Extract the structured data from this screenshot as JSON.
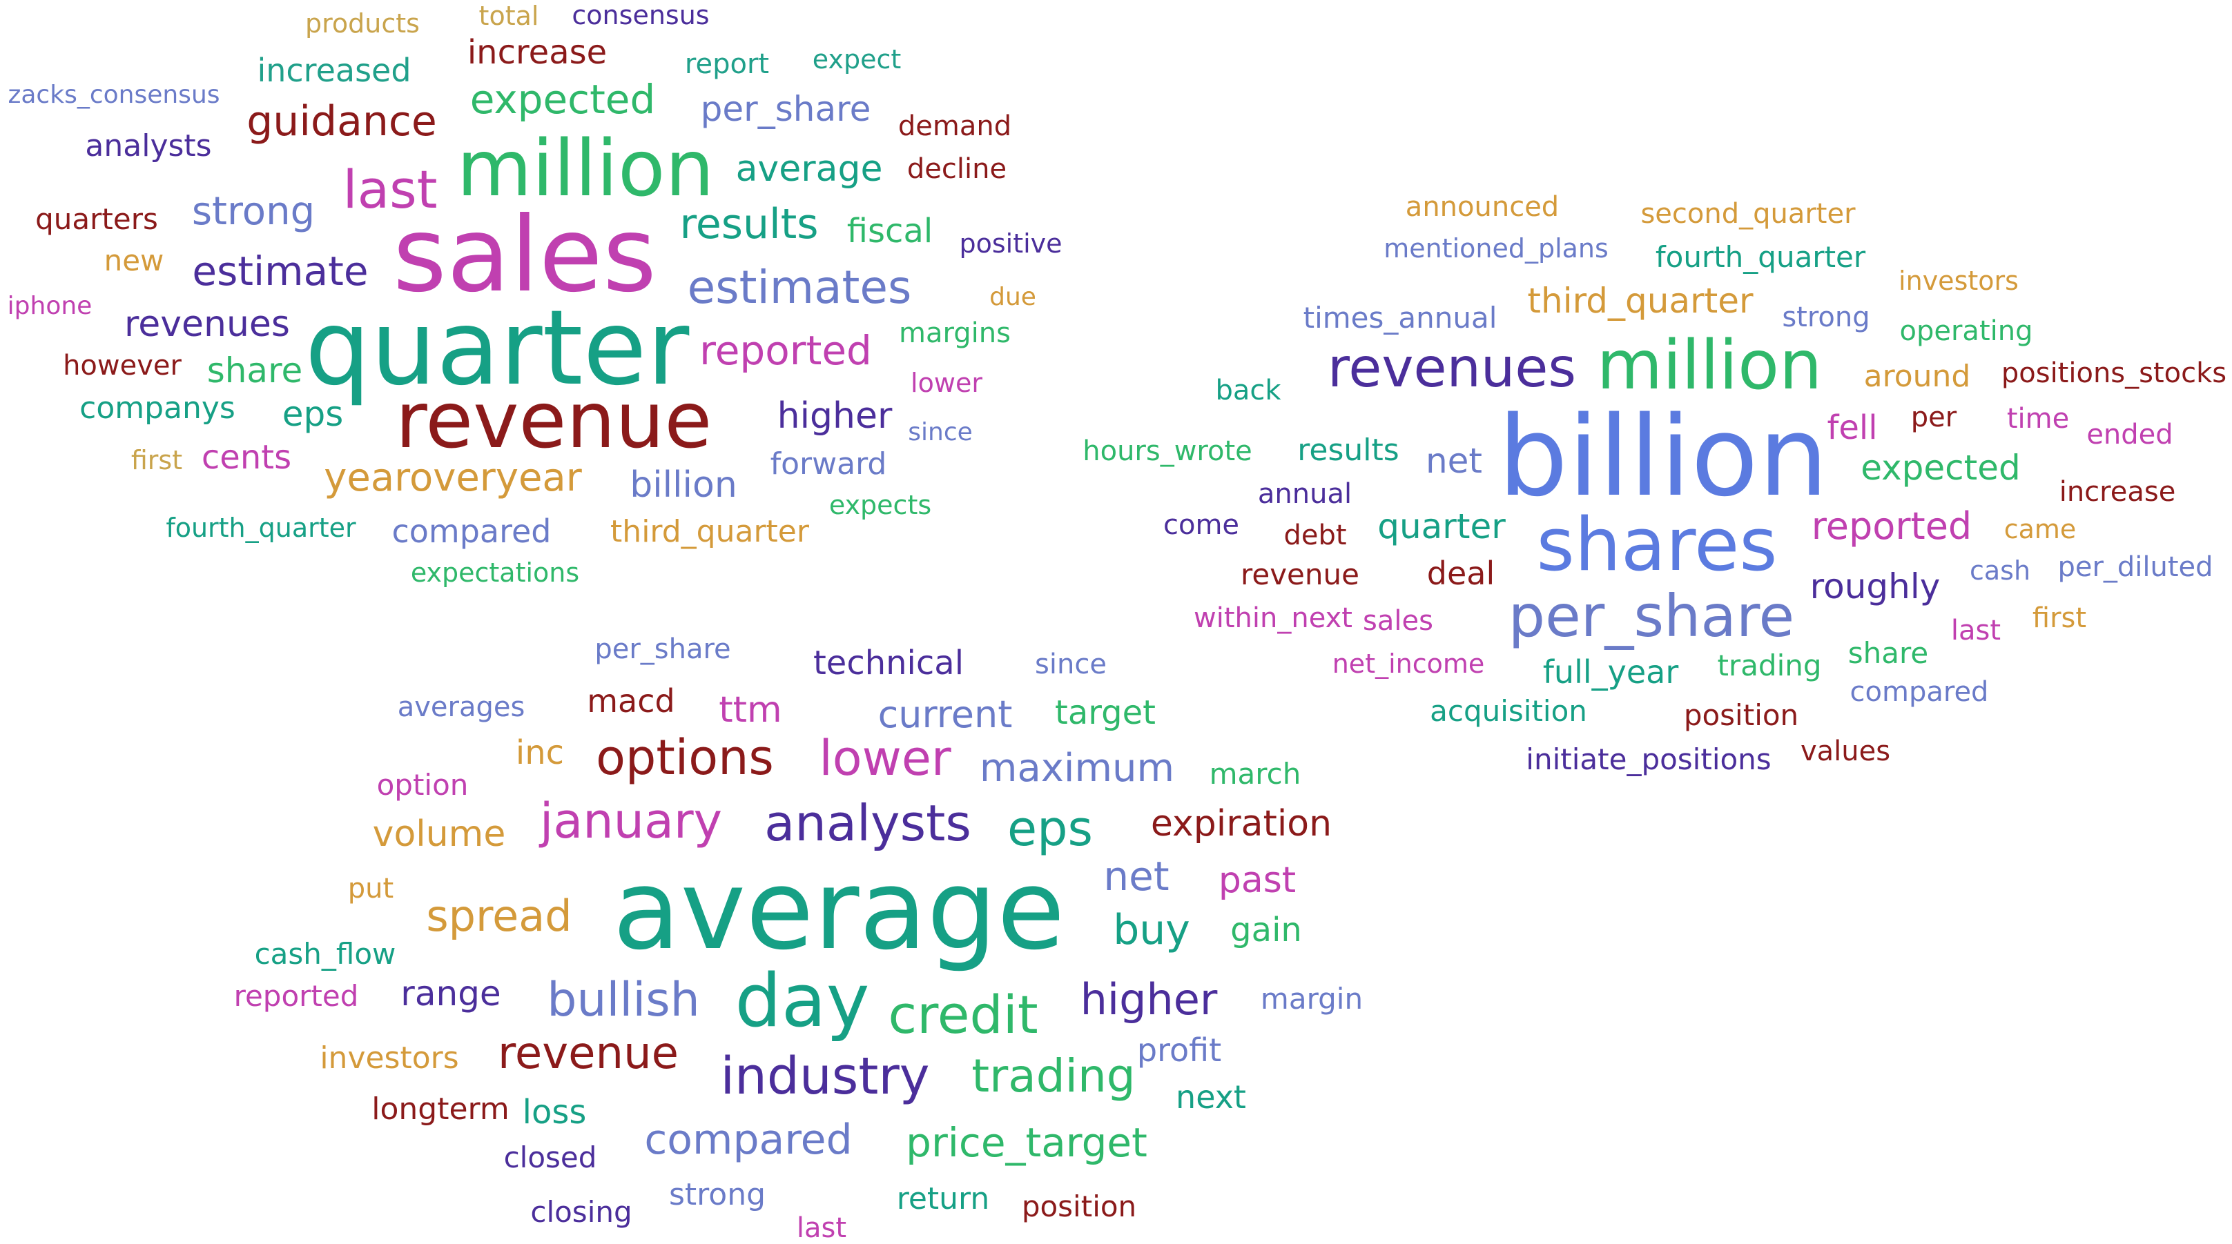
{
  "clouds": [
    {
      "name": "cloud-topic-1",
      "words": [
        {
          "text": "products",
          "color": "#C9A44C"
        },
        {
          "text": "total",
          "color": "#C9A44C"
        },
        {
          "text": "consensus",
          "color": "#4B2E9B"
        },
        {
          "text": "increased",
          "color": "#20A08A"
        },
        {
          "text": "increase",
          "color": "#8B1A1A"
        },
        {
          "text": "report",
          "color": "#20A08A"
        },
        {
          "text": "expect",
          "color": "#20A08A"
        },
        {
          "text": "zacks_consensus",
          "color": "#6A7BC8"
        },
        {
          "text": "expected",
          "color": "#2FB86A"
        },
        {
          "text": "per_share",
          "color": "#6A7BC8"
        },
        {
          "text": "guidance",
          "color": "#8B1A1A"
        },
        {
          "text": "demand",
          "color": "#8B1A1A"
        },
        {
          "text": "analysts",
          "color": "#4B2E9B"
        },
        {
          "text": "million",
          "color": "#2FB86A"
        },
        {
          "text": "average",
          "color": "#16A085"
        },
        {
          "text": "decline",
          "color": "#8B1A1A"
        },
        {
          "text": "last",
          "color": "#C040B0"
        },
        {
          "text": "quarters",
          "color": "#8B1A1A"
        },
        {
          "text": "strong",
          "color": "#6A7BC8"
        },
        {
          "text": "results",
          "color": "#16A085"
        },
        {
          "text": "fiscal",
          "color": "#2FB86A"
        },
        {
          "text": "sales",
          "color": "#C040B0"
        },
        {
          "text": "positive",
          "color": "#4B2E9B"
        },
        {
          "text": "new",
          "color": "#D49A3A"
        },
        {
          "text": "estimate",
          "color": "#4B2E9B"
        },
        {
          "text": "estimates",
          "color": "#6A7BC8"
        },
        {
          "text": "iphone",
          "color": "#C040B0"
        },
        {
          "text": "due",
          "color": "#D49A3A"
        },
        {
          "text": "revenues",
          "color": "#4B2E9B"
        },
        {
          "text": "quarter",
          "color": "#16A085"
        },
        {
          "text": "margins",
          "color": "#2FB86A"
        },
        {
          "text": "reported",
          "color": "#C040B0"
        },
        {
          "text": "however",
          "color": "#8B1A1A"
        },
        {
          "text": "share",
          "color": "#2FB86A"
        },
        {
          "text": "lower",
          "color": "#C040B0"
        },
        {
          "text": "companys",
          "color": "#16A085"
        },
        {
          "text": "eps",
          "color": "#16A085"
        },
        {
          "text": "revenue",
          "color": "#8B1A1A"
        },
        {
          "text": "higher",
          "color": "#4B2E9B"
        },
        {
          "text": "since",
          "color": "#6A7BC8"
        },
        {
          "text": "first",
          "color": "#C9A44C"
        },
        {
          "text": "cents",
          "color": "#C040B0"
        },
        {
          "text": "forward",
          "color": "#6A7BC8"
        },
        {
          "text": "yearoveryear",
          "color": "#D49A3A"
        },
        {
          "text": "billion",
          "color": "#6A7BC8"
        },
        {
          "text": "expects",
          "color": "#2FB86A"
        },
        {
          "text": "fourth_quarter",
          "color": "#16A085"
        },
        {
          "text": "compared",
          "color": "#6A7BC8"
        },
        {
          "text": "third_quarter",
          "color": "#D49A3A"
        },
        {
          "text": "expectations",
          "color": "#2FB86A"
        }
      ]
    },
    {
      "name": "cloud-topic-2",
      "words": [
        {
          "text": "announced",
          "color": "#D49A3A"
        },
        {
          "text": "second_quarter",
          "color": "#D49A3A"
        },
        {
          "text": "mentioned_plans",
          "color": "#6A7BC8"
        },
        {
          "text": "fourth_quarter",
          "color": "#16A085"
        },
        {
          "text": "investors",
          "color": "#D49A3A"
        },
        {
          "text": "times_annual",
          "color": "#6A7BC8"
        },
        {
          "text": "third_quarter",
          "color": "#D49A3A"
        },
        {
          "text": "strong",
          "color": "#6A7BC8"
        },
        {
          "text": "operating",
          "color": "#2FB86A"
        },
        {
          "text": "revenues",
          "color": "#4B2E9B"
        },
        {
          "text": "million",
          "color": "#2FB86A"
        },
        {
          "text": "back",
          "color": "#16A085"
        },
        {
          "text": "around",
          "color": "#D49A3A"
        },
        {
          "text": "positions_stocks",
          "color": "#8B1A1A"
        },
        {
          "text": "billion",
          "color": "#5B7BE0"
        },
        {
          "text": "fell",
          "color": "#C040B0"
        },
        {
          "text": "per",
          "color": "#8B1A1A"
        },
        {
          "text": "time",
          "color": "#C040B0"
        },
        {
          "text": "ended",
          "color": "#C040B0"
        },
        {
          "text": "hours_wrote",
          "color": "#2FB86A"
        },
        {
          "text": "results",
          "color": "#16A085"
        },
        {
          "text": "net",
          "color": "#6A7BC8"
        },
        {
          "text": "expected",
          "color": "#2FB86A"
        },
        {
          "text": "annual",
          "color": "#4B2E9B"
        },
        {
          "text": "increase",
          "color": "#8B1A1A"
        },
        {
          "text": "come",
          "color": "#4B2E9B"
        },
        {
          "text": "debt",
          "color": "#8B1A1A"
        },
        {
          "text": "quarter",
          "color": "#16A085"
        },
        {
          "text": "shares",
          "color": "#5B7BE0"
        },
        {
          "text": "reported",
          "color": "#C040B0"
        },
        {
          "text": "came",
          "color": "#D49A3A"
        },
        {
          "text": "revenue",
          "color": "#8B1A1A"
        },
        {
          "text": "deal",
          "color": "#8B1A1A"
        },
        {
          "text": "roughly",
          "color": "#4B2E9B"
        },
        {
          "text": "cash",
          "color": "#6A7BC8"
        },
        {
          "text": "per_diluted",
          "color": "#6A7BC8"
        },
        {
          "text": "within_next",
          "color": "#C040B0"
        },
        {
          "text": "sales",
          "color": "#C040B0"
        },
        {
          "text": "per_share",
          "color": "#6A7BC8"
        },
        {
          "text": "last",
          "color": "#C040B0"
        },
        {
          "text": "first",
          "color": "#D49A3A"
        },
        {
          "text": "net_income",
          "color": "#C040B0"
        },
        {
          "text": "full_year",
          "color": "#16A085"
        },
        {
          "text": "trading",
          "color": "#2FB86A"
        },
        {
          "text": "share",
          "color": "#2FB86A"
        },
        {
          "text": "acquisition",
          "color": "#16A085"
        },
        {
          "text": "position",
          "color": "#8B1A1A"
        },
        {
          "text": "compared",
          "color": "#6A7BC8"
        },
        {
          "text": "initiate_positions",
          "color": "#4B2E9B"
        },
        {
          "text": "values",
          "color": "#8B1A1A"
        }
      ]
    },
    {
      "name": "cloud-topic-3",
      "words": [
        {
          "text": "per_share",
          "color": "#6A7BC8"
        },
        {
          "text": "technical",
          "color": "#4B2E9B"
        },
        {
          "text": "since",
          "color": "#6A7BC8"
        },
        {
          "text": "averages",
          "color": "#6A7BC8"
        },
        {
          "text": "macd",
          "color": "#8B1A1A"
        },
        {
          "text": "ttm",
          "color": "#C040B0"
        },
        {
          "text": "current",
          "color": "#6A7BC8"
        },
        {
          "text": "target",
          "color": "#2FB86A"
        },
        {
          "text": "inc",
          "color": "#D49A3A"
        },
        {
          "text": "options",
          "color": "#8B1A1A"
        },
        {
          "text": "lower",
          "color": "#C040B0"
        },
        {
          "text": "maximum",
          "color": "#6A7BC8"
        },
        {
          "text": "option",
          "color": "#C040B0"
        },
        {
          "text": "march",
          "color": "#2FB86A"
        },
        {
          "text": "january",
          "color": "#C040B0"
        },
        {
          "text": "analysts",
          "color": "#4B2E9B"
        },
        {
          "text": "eps",
          "color": "#16A085"
        },
        {
          "text": "expiration",
          "color": "#8B1A1A"
        },
        {
          "text": "volume",
          "color": "#D49A3A"
        },
        {
          "text": "put",
          "color": "#D49A3A"
        },
        {
          "text": "net",
          "color": "#6A7BC8"
        },
        {
          "text": "past",
          "color": "#C040B0"
        },
        {
          "text": "spread",
          "color": "#D49A3A"
        },
        {
          "text": "average",
          "color": "#16A085"
        },
        {
          "text": "buy",
          "color": "#16A085"
        },
        {
          "text": "gain",
          "color": "#2FB86A"
        },
        {
          "text": "cash_flow",
          "color": "#16A085"
        },
        {
          "text": "range",
          "color": "#4B2E9B"
        },
        {
          "text": "day",
          "color": "#16A085"
        },
        {
          "text": "higher",
          "color": "#4B2E9B"
        },
        {
          "text": "margin",
          "color": "#6A7BC8"
        },
        {
          "text": "reported",
          "color": "#C040B0"
        },
        {
          "text": "bullish",
          "color": "#6A7BC8"
        },
        {
          "text": "credit",
          "color": "#2FB86A"
        },
        {
          "text": "investors",
          "color": "#D49A3A"
        },
        {
          "text": "revenue",
          "color": "#8B1A1A"
        },
        {
          "text": "profit",
          "color": "#6A7BC8"
        },
        {
          "text": "industry",
          "color": "#4B2E9B"
        },
        {
          "text": "trading",
          "color": "#2FB86A"
        },
        {
          "text": "longterm",
          "color": "#8B1A1A"
        },
        {
          "text": "loss",
          "color": "#16A085"
        },
        {
          "text": "next",
          "color": "#16A085"
        },
        {
          "text": "compared",
          "color": "#6A7BC8"
        },
        {
          "text": "price_target",
          "color": "#2FB86A"
        },
        {
          "text": "closed",
          "color": "#4B2E9B"
        },
        {
          "text": "strong",
          "color": "#6A7BC8"
        },
        {
          "text": "return",
          "color": "#16A085"
        },
        {
          "text": "position",
          "color": "#8B1A1A"
        },
        {
          "text": "closing",
          "color": "#4B2E9B"
        },
        {
          "text": "last",
          "color": "#C040B0"
        }
      ]
    }
  ]
}
